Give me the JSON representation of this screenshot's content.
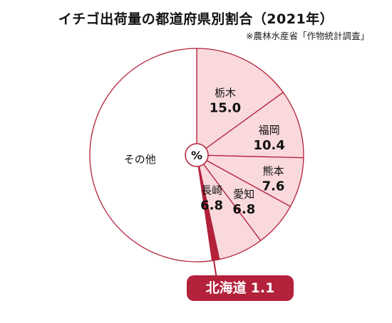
{
  "title": "イチゴ出荷量の都道府県別割合（2021年）",
  "source": "※農林水産省「作物統計調査」",
  "center_label": "%",
  "colors": {
    "slice_fill": "#f9d9dc",
    "slice_stroke": "#b3213a",
    "highlight": "#b3213a",
    "other_fill": "#ffffff"
  },
  "chart_data": {
    "type": "pie",
    "title": "イチゴ出荷量の都道府県別割合（2021年）",
    "unit": "%",
    "start": "12 o'clock, clockwise",
    "slices": [
      {
        "label": "栃木",
        "value": 15.0
      },
      {
        "label": "福岡",
        "value": 10.4
      },
      {
        "label": "熊本",
        "value": 7.6
      },
      {
        "label": "愛知",
        "value": 6.8
      },
      {
        "label": "長崎",
        "value": 6.8
      },
      {
        "label": "北海道",
        "value": 1.1
      },
      {
        "label": "その他",
        "value": 52.3
      }
    ]
  }
}
